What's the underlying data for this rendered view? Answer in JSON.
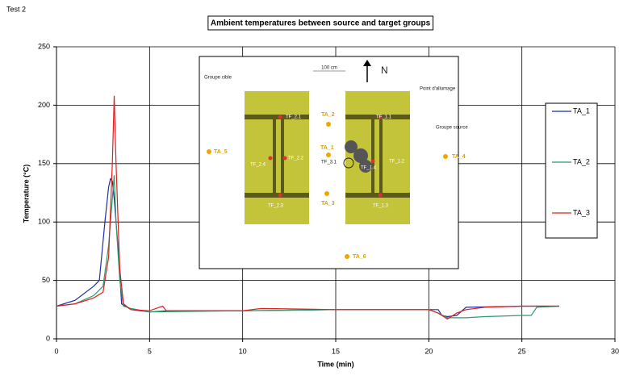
{
  "chart_data": {
    "type": "line",
    "caption": "Test 2",
    "title": "Ambient temperatures between source and target groups",
    "xlabel": "Time (min)",
    "ylabel": "Temperature (°C)",
    "xlim": [
      0,
      30
    ],
    "xticks": [
      0,
      5,
      10,
      15,
      20,
      25,
      30
    ],
    "ylim": [
      0,
      250
    ],
    "yticks": [
      0,
      50,
      100,
      150,
      200,
      250
    ],
    "grid": true,
    "series": [
      {
        "name": "TA_1",
        "color": "#1f2f9f",
        "x": [
          0,
          1,
          2,
          2.3,
          2.6,
          2.8,
          2.9,
          3.0,
          3.1,
          3.3,
          3.5,
          4,
          5,
          6,
          10,
          15,
          20,
          20.5,
          20.7,
          21,
          21.5,
          22,
          25,
          27
        ],
        "values": [
          28,
          33,
          45,
          50,
          100,
          130,
          137,
          135,
          120,
          80,
          30,
          25,
          23,
          24,
          24,
          25,
          25,
          25,
          20,
          19,
          20,
          27,
          28,
          28
        ]
      },
      {
        "name": "TA_2",
        "color": "#2e9a6e",
        "x": [
          0,
          1,
          2,
          2.5,
          2.8,
          3.0,
          3.1,
          3.2,
          3.4,
          3.6,
          4,
          5,
          10,
          15,
          20,
          20.5,
          21,
          22,
          23,
          25,
          25.5,
          25.8,
          27
        ],
        "values": [
          28,
          30,
          37,
          45,
          80,
          120,
          140,
          100,
          50,
          28,
          26,
          23,
          24,
          25,
          25,
          22,
          18,
          18,
          19,
          20,
          20,
          27,
          28
        ]
      },
      {
        "name": "TA_3",
        "color": "#e02020",
        "x": [
          0,
          1,
          2,
          2.5,
          2.8,
          3.0,
          3.1,
          3.2,
          3.4,
          3.6,
          4,
          5,
          5.7,
          5.9,
          10,
          11,
          15,
          20,
          20.5,
          21,
          21.5,
          22,
          23,
          25,
          27
        ],
        "values": [
          28,
          30,
          35,
          40,
          70,
          150,
          208,
          150,
          60,
          30,
          25,
          24,
          28,
          24,
          24,
          26,
          25,
          25,
          22,
          17,
          22,
          25,
          27,
          28,
          28
        ]
      }
    ]
  },
  "inset": {
    "target_group": "Groupe cible",
    "ignition_point": "Point d'allumage",
    "source_group": "Groupe source",
    "distance": "100 cm",
    "north": "N",
    "labels": [
      "TF_2.1",
      "TF_2.4",
      "TF_2.2",
      "TF_2.3",
      "TA_2",
      "TA_1",
      "TF_3.1",
      "TA_3",
      "TF_1.1",
      "TF_1.4",
      "TF_1.2",
      "TF_1.3",
      "TA_4",
      "TA_5",
      "TA_6"
    ]
  }
}
